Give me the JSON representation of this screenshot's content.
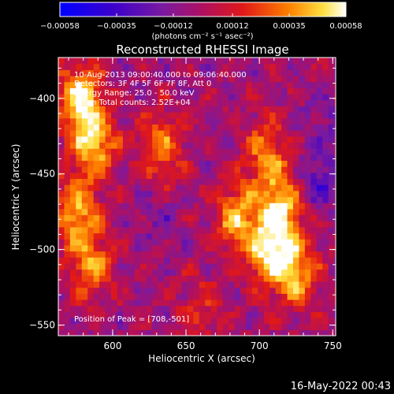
{
  "chart_data": {
    "type": "heatmap",
    "title": "Reconstructed RHESSI Image",
    "xlabel": "Heliocentric X (arcsec)",
    "ylabel": "Heliocentric Y (arcsec)",
    "xlim": [
      563,
      752
    ],
    "ylim": [
      -557,
      -373
    ],
    "x_ticks": [
      600,
      650,
      700,
      750
    ],
    "y_ticks": [
      -550,
      -500,
      -450,
      -400
    ],
    "x_tick_labels": [
      "600",
      "650",
      "700",
      "750"
    ],
    "y_tick_labels": [
      "−550",
      "−500",
      "−450",
      "−400"
    ],
    "colorbar": {
      "min": -0.00058,
      "max": 0.00058,
      "tick_values": [
        -0.00058,
        -0.00035,
        -0.00012,
        0.00012,
        0.00035,
        0.00058
      ],
      "tick_labels": [
        "−0.00058",
        "−0.00035",
        "−0.00012",
        "0.00012",
        "0.00035",
        "0.00058"
      ],
      "units_label": "(photons cm⁻² s⁻¹ asec⁻²)"
    },
    "annotations": {
      "time_range": "10-Aug-2013 09:00:40.000 to 09:06:40.000",
      "detectors": "Detectors: 3F 4F 5F 6F 7F 8F, Att 0",
      "energy": "Energy Range: 25.0 - 50.0 keV",
      "clean": "Clean    Total counts: 2.52E+04",
      "peak": "Position of Peak = [708,-501]"
    },
    "peak_position": [
      708,
      -501
    ],
    "hot_regions": [
      {
        "x": 578,
        "y": -400,
        "value": 0.00058
      },
      {
        "x": 588,
        "y": -430,
        "value": 0.00048
      },
      {
        "x": 575,
        "y": -475,
        "value": 0.00045
      },
      {
        "x": 585,
        "y": -510,
        "value": 0.0004
      },
      {
        "x": 633,
        "y": -432,
        "value": 0.00035
      },
      {
        "x": 705,
        "y": -435,
        "value": 0.00035
      },
      {
        "x": 685,
        "y": -478,
        "value": 0.00045
      },
      {
        "x": 708,
        "y": -501,
        "value": 0.00058
      },
      {
        "x": 715,
        "y": -470,
        "value": 0.00052
      },
      {
        "x": 725,
        "y": -515,
        "value": 0.00042
      },
      {
        "x": 660,
        "y": -540,
        "value": 0.0002
      }
    ],
    "cold_regions": [
      {
        "x": 740,
        "y": -455,
        "value": -0.00025
      },
      {
        "x": 745,
        "y": -415,
        "value": -0.00012
      },
      {
        "x": 630,
        "y": -480,
        "value": -0.0001
      }
    ]
  },
  "footer": {
    "datestamp": "16-May-2022 00:43"
  }
}
